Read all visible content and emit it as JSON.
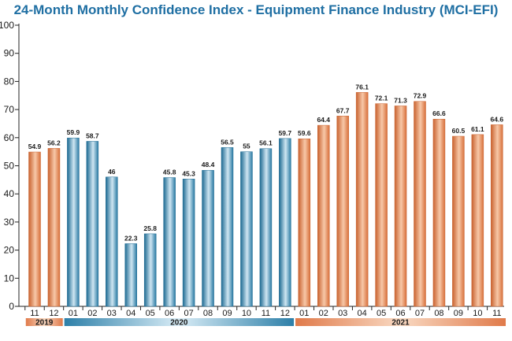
{
  "chart_data": {
    "type": "bar",
    "title": "24-Month Monthly Confidence Index - Equipment Finance Industry (MCI-EFI)",
    "xlabel": "",
    "ylabel": "",
    "ylim": [
      0,
      100
    ],
    "yticks": [
      0,
      10,
      20,
      30,
      40,
      50,
      60,
      70,
      80,
      90,
      100
    ],
    "categories": [
      "11",
      "12",
      "01",
      "02",
      "03",
      "04",
      "05",
      "06",
      "07",
      "08",
      "09",
      "10",
      "11",
      "12",
      "01",
      "02",
      "03",
      "04",
      "05",
      "06",
      "07",
      "08",
      "09",
      "10",
      "11"
    ],
    "values": [
      54.9,
      56.2,
      59.9,
      58.7,
      46,
      22.3,
      25.8,
      45.8,
      45.3,
      48.4,
      56.5,
      55,
      56.1,
      59.7,
      59.6,
      64.4,
      67.7,
      76.1,
      72.1,
      71.3,
      72.9,
      66.6,
      60.5,
      61.1,
      64.6
    ],
    "value_labels": [
      "54.9",
      "56.2",
      "59.9",
      "58.7",
      "46",
      "22.3",
      "25.8",
      "45.8",
      "45.3",
      "48.4",
      "56.5",
      "55",
      "56.1",
      "59.7",
      "59.6",
      "64.4",
      "67.7",
      "76.1",
      "72.1",
      "71.3",
      "72.9",
      "66.6",
      "60.5",
      "61.1",
      "64.6"
    ],
    "year_groups": [
      {
        "year": "2019",
        "start": 0,
        "end": 1,
        "color": "#e07a4a"
      },
      {
        "year": "2020",
        "start": 2,
        "end": 13,
        "color": "#2d7fa8"
      },
      {
        "year": "2021",
        "start": 14,
        "end": 24,
        "color": "#e07a4a"
      }
    ],
    "grid": false,
    "legend": "none"
  },
  "colors": {
    "title": "#1f6fa3",
    "orange_dark": "#c9622f",
    "orange_light": "#f7c8a8",
    "blue_dark": "#1d6a92",
    "blue_light": "#cfe6f2"
  }
}
